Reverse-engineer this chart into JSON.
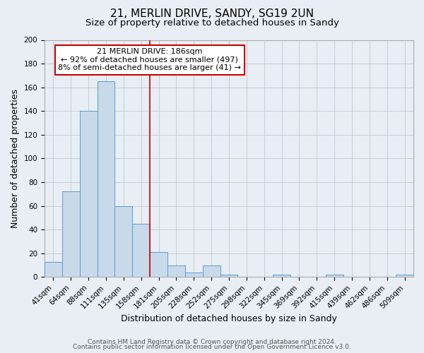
{
  "title": "21, MERLIN DRIVE, SANDY, SG19 2UN",
  "subtitle": "Size of property relative to detached houses in Sandy",
  "xlabel": "Distribution of detached houses by size in Sandy",
  "ylabel": "Number of detached properties",
  "bin_labels": [
    "41sqm",
    "64sqm",
    "88sqm",
    "111sqm",
    "135sqm",
    "158sqm",
    "181sqm",
    "205sqm",
    "228sqm",
    "252sqm",
    "275sqm",
    "298sqm",
    "322sqm",
    "345sqm",
    "369sqm",
    "392sqm",
    "415sqm",
    "439sqm",
    "462sqm",
    "486sqm",
    "509sqm"
  ],
  "bar_heights": [
    13,
    72,
    140,
    165,
    60,
    45,
    21,
    10,
    4,
    10,
    2,
    0,
    0,
    2,
    0,
    0,
    2,
    0,
    0,
    0,
    2
  ],
  "bar_color": "#c8d9ea",
  "bar_edge_color": "#5b9bd5",
  "ylim": [
    0,
    200
  ],
  "yticks": [
    0,
    20,
    40,
    60,
    80,
    100,
    120,
    140,
    160,
    180,
    200
  ],
  "vline_x_index": 6,
  "vline_color": "#cc0000",
  "annotation_line1": "21 MERLIN DRIVE: 186sqm",
  "annotation_line2": "← 92% of detached houses are smaller (497)",
  "annotation_line3": "8% of semi-detached houses are larger (41) →",
  "annotation_box_color": "#ffffff",
  "annotation_box_edge_color": "#cc0000",
  "footer_line1": "Contains HM Land Registry data © Crown copyright and database right 2024.",
  "footer_line2": "Contains public sector information licensed under the Open Government Licence v3.0.",
  "background_color": "#e8eef4",
  "grid_color": "#c0c8d0",
  "title_fontsize": 11,
  "subtitle_fontsize": 9.5,
  "xlabel_fontsize": 9,
  "ylabel_fontsize": 9,
  "tick_fontsize": 7.5,
  "annotation_fontsize": 8,
  "footer_fontsize": 6.5
}
